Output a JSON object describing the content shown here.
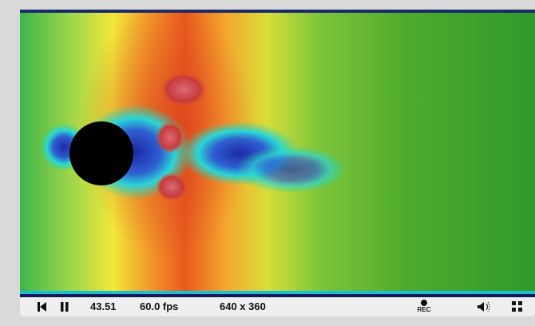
{
  "player": {
    "time": "43.51",
    "fps": "60.0 fps",
    "resolution": "640 x 360",
    "rec_label": "REC"
  },
  "icons": [
    "rewind-icon",
    "pause-icon",
    "record-icon",
    "volume-icon",
    "fullscreen-icon"
  ]
}
